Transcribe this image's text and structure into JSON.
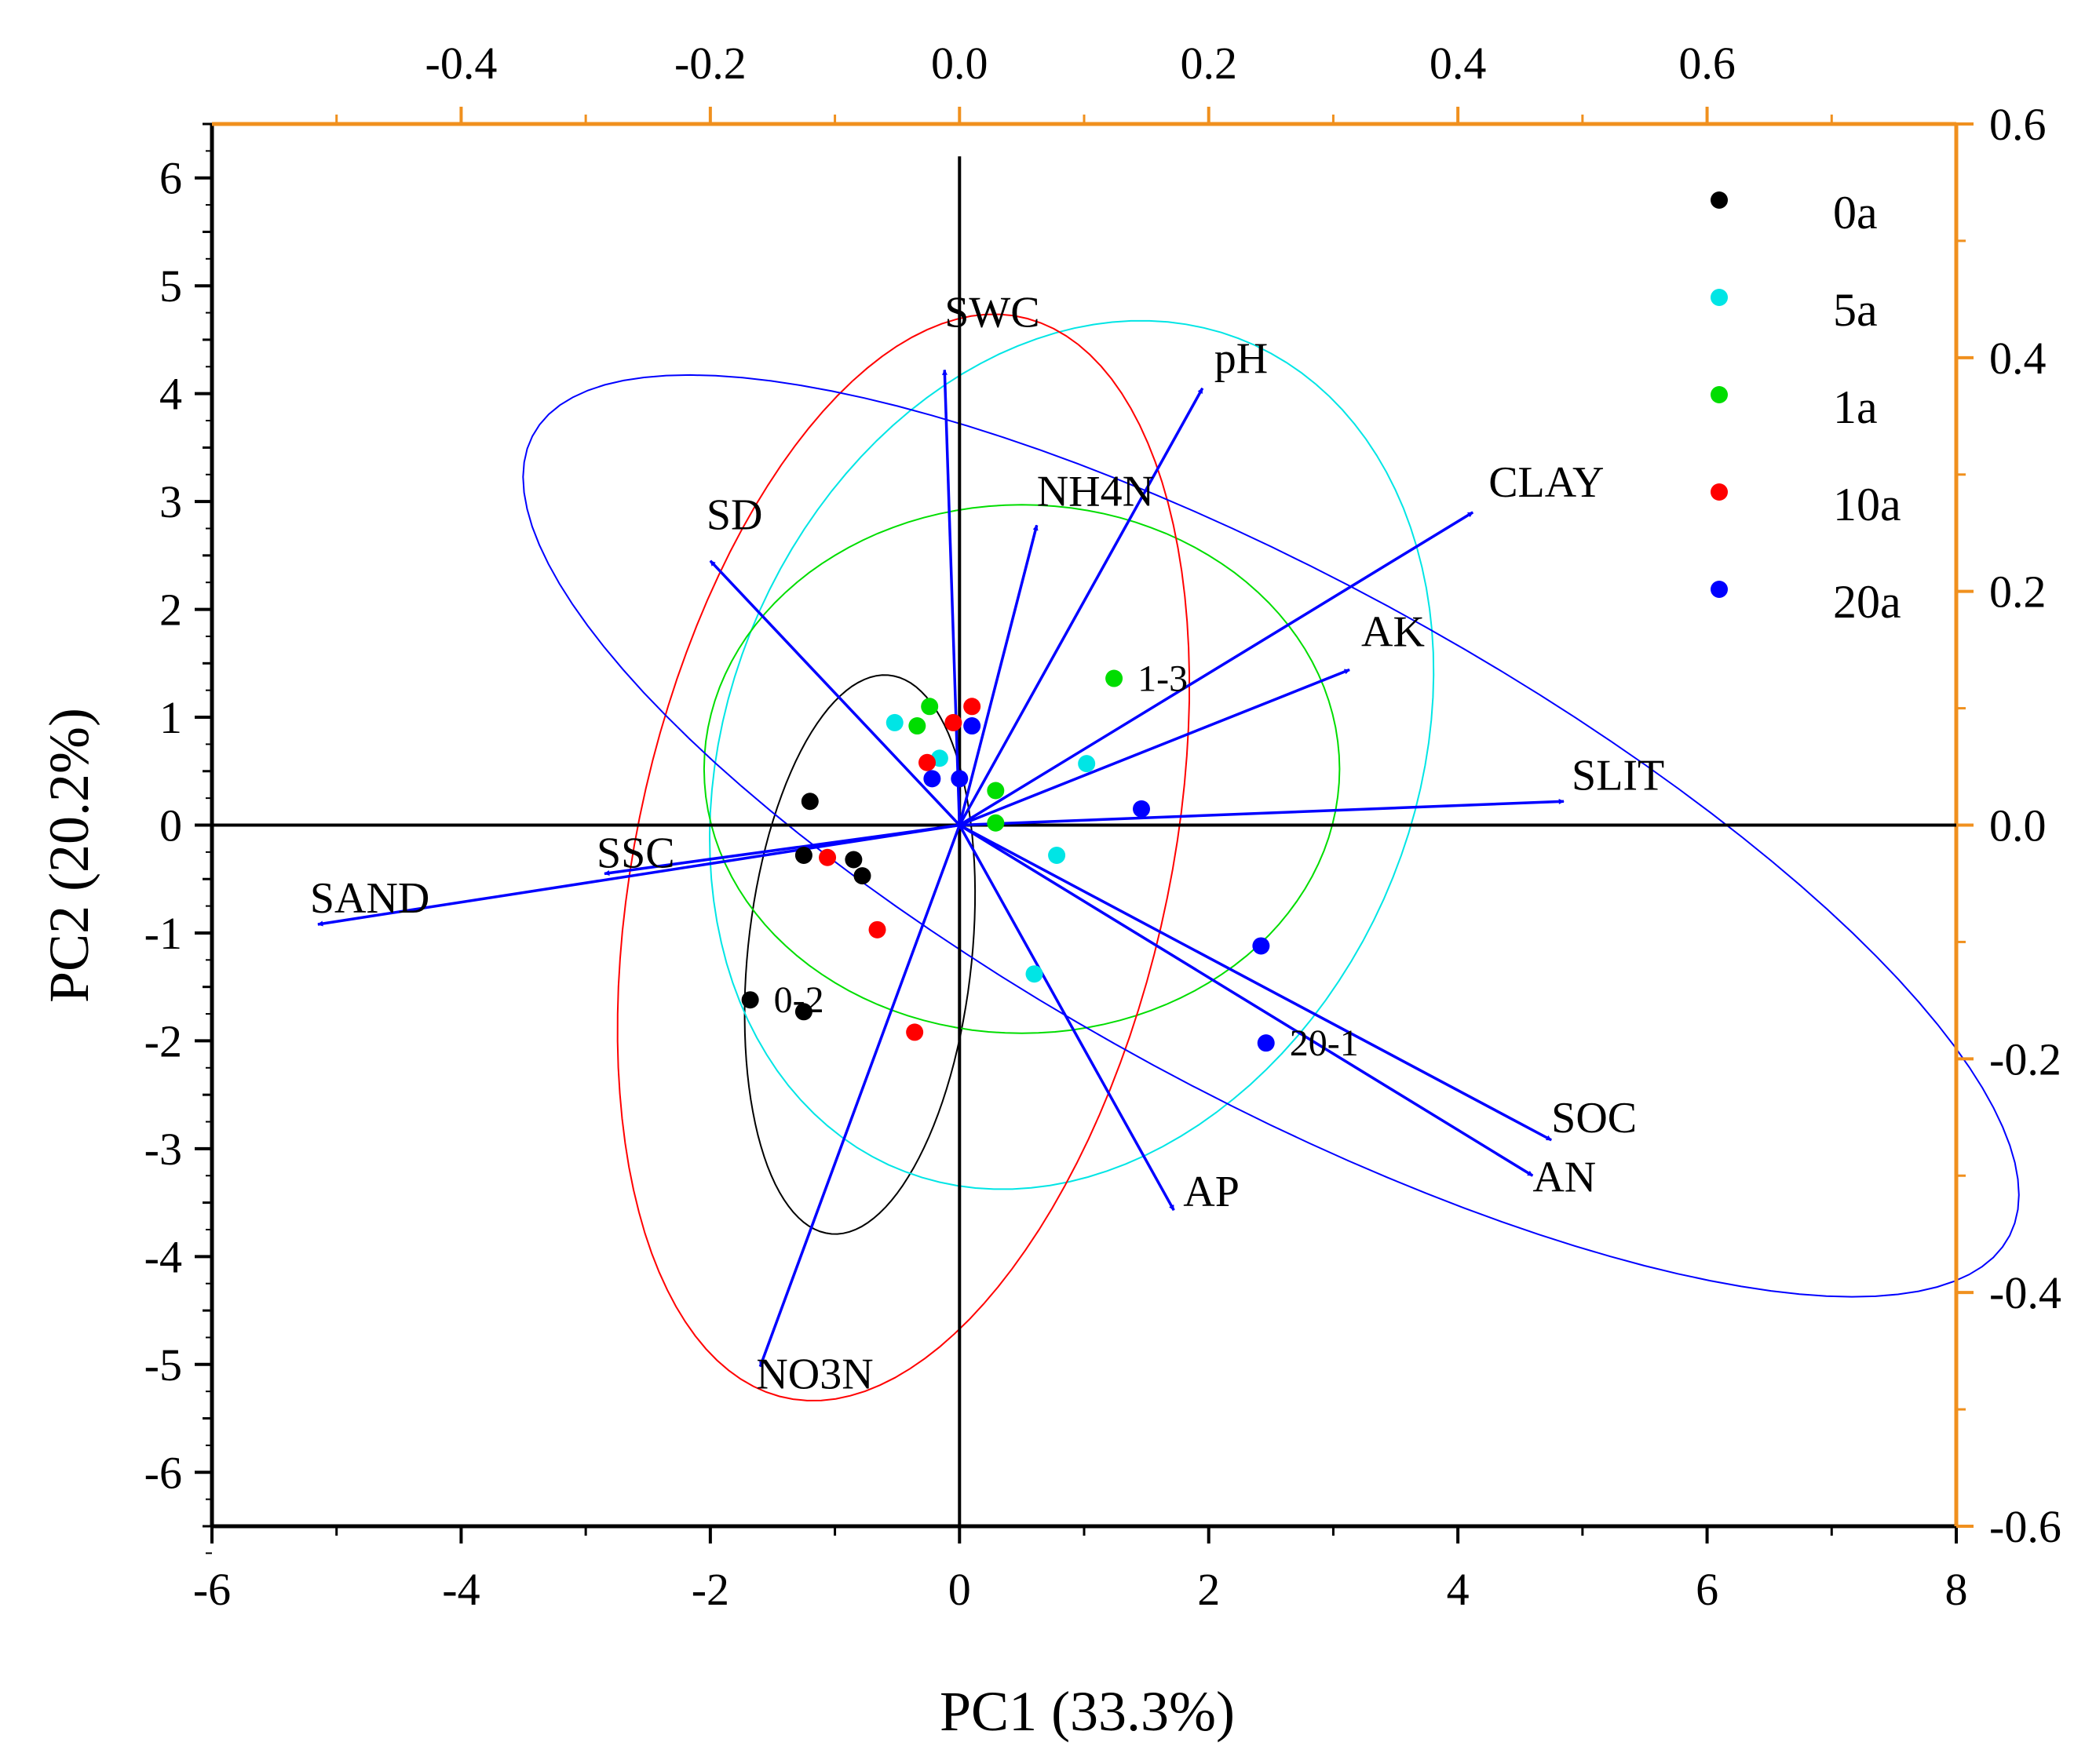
{
  "chart_data": {
    "type": "scatter",
    "subtype": "pca-biplot",
    "title": "",
    "xlabel": "PC1 (33.3%)",
    "ylabel": "PC2 (20.2%)",
    "xlim": [
      -6,
      8
    ],
    "ylim": [
      -6.5,
      6.5
    ],
    "xticks": [
      "-6",
      "-4",
      "-2",
      "0",
      "2",
      "4",
      "6",
      "8"
    ],
    "yticks": [
      "-6",
      "-5",
      "-4",
      "-3",
      "-2",
      "-1",
      "0",
      "1",
      "2",
      "3",
      "4",
      "5",
      "6"
    ],
    "top_axis": {
      "range": [
        -0.6,
        0.8
      ],
      "ticks": [
        "-0.4",
        "-0.2",
        "0.0",
        "0.2",
        "0.4",
        "0.6"
      ],
      "color": "#f0901e"
    },
    "right_axis": {
      "range": [
        -0.6,
        0.6
      ],
      "ticks": [
        "-0.6",
        "-0.4",
        "-0.2",
        "0.0",
        "0.2",
        "0.4",
        "0.6"
      ],
      "color": "#f0901e"
    },
    "legend": {
      "position": "top-right"
    },
    "groups": [
      {
        "name": "0a",
        "color": "#000000",
        "points": [
          [
            -1.2,
            0.22
          ],
          [
            -1.25,
            -0.28
          ],
          [
            -0.85,
            -0.32
          ],
          [
            -0.78,
            -0.47
          ],
          [
            -1.68,
            -1.62
          ],
          [
            -1.25,
            -1.73
          ]
        ],
        "ellipse": {
          "cx": -0.8,
          "cy": -1.2,
          "rx": 2.6,
          "ry": 0.9,
          "angle_deg": 85
        }
      },
      {
        "name": "5a",
        "color": "#00e5e5",
        "points": [
          [
            -0.52,
            0.95
          ],
          [
            -0.16,
            0.62
          ],
          [
            1.02,
            0.57
          ],
          [
            0.78,
            -0.28
          ],
          [
            0.6,
            -1.38
          ]
        ],
        "ellipse": {
          "cx": 0.9,
          "cy": 0.65,
          "rx": 4.1,
          "ry": 2.8,
          "angle_deg": 75
        }
      },
      {
        "name": "1a",
        "color": "#00dd00",
        "points": [
          [
            -0.24,
            1.1
          ],
          [
            -0.34,
            0.92
          ],
          [
            0.29,
            0.32
          ],
          [
            0.29,
            0.02
          ],
          [
            1.24,
            1.36
          ]
        ],
        "ellipse": {
          "cx": 0.5,
          "cy": 0.52,
          "rx": 2.55,
          "ry": 2.45,
          "angle_deg": 0
        }
      },
      {
        "name": "10a",
        "color": "#ff0000",
        "points": [
          [
            0.1,
            1.1
          ],
          [
            -0.05,
            0.95
          ],
          [
            -0.26,
            0.58
          ],
          [
            -1.06,
            -0.3
          ],
          [
            -0.66,
            -0.97
          ],
          [
            -0.36,
            -1.92
          ]
        ],
        "ellipse": {
          "cx": -0.45,
          "cy": -0.3,
          "rx": 5.1,
          "ry": 2.15,
          "angle_deg": 80
        }
      },
      {
        "name": "20a",
        "color": "#0000ff",
        "points": [
          [
            0.1,
            0.92
          ],
          [
            0.0,
            0.43
          ],
          [
            -0.22,
            0.43
          ],
          [
            1.46,
            0.15
          ],
          [
            2.42,
            -1.12
          ],
          [
            2.46,
            -2.02
          ]
        ],
        "ellipse": {
          "cx": 2.5,
          "cy": -0.1,
          "rx": 7.0,
          "ry": 2.3,
          "angle_deg": -33
        }
      }
    ],
    "point_labels": [
      {
        "text": "0-2",
        "x": -1.68,
        "y": -1.62
      },
      {
        "text": "1-3",
        "x": 1.24,
        "y": 1.36
      },
      {
        "text": "20-1",
        "x": 2.46,
        "y": -2.02
      }
    ],
    "loadings": [
      {
        "name": "SWC",
        "x": -0.12,
        "y": 4.22
      },
      {
        "name": "pH",
        "x": 1.95,
        "y": 4.05
      },
      {
        "name": "NH4N",
        "x": 0.62,
        "y": 2.78
      },
      {
        "name": "SD",
        "x": -2.0,
        "y": 2.45
      },
      {
        "name": "CLAY",
        "x": 4.12,
        "y": 2.9
      },
      {
        "name": "AK",
        "x": 3.13,
        "y": 1.44
      },
      {
        "name": "SLIT",
        "x": 4.85,
        "y": 0.22
      },
      {
        "name": "SSC",
        "x": -2.85,
        "y": -0.45
      },
      {
        "name": "SAND",
        "x": -5.15,
        "y": -0.92
      },
      {
        "name": "SOC",
        "x": 4.75,
        "y": -2.92
      },
      {
        "name": "AN",
        "x": 4.6,
        "y": -3.25
      },
      {
        "name": "AP",
        "x": 1.72,
        "y": -3.57
      },
      {
        "name": "NO3N",
        "x": -1.6,
        "y": -5.02
      }
    ]
  }
}
